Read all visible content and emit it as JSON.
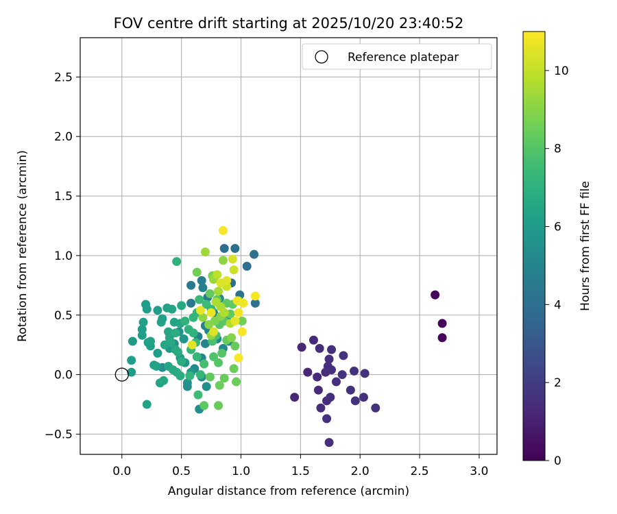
{
  "chart_data": {
    "type": "scatter",
    "title": "FOV centre drift starting at 2025/10/20 23:40:52",
    "xlabel": "Angular distance from reference (arcmin)",
    "ylabel": "Rotation from reference (arcmin)",
    "xlim": [
      -0.35,
      3.15
    ],
    "ylim": [
      -0.67,
      2.83
    ],
    "x_ticks": [
      0.0,
      0.5,
      1.0,
      1.5,
      2.0,
      2.5,
      3.0
    ],
    "x_tick_labels": [
      "0.0",
      "0.5",
      "1.0",
      "1.5",
      "2.0",
      "2.5",
      "3.0"
    ],
    "y_ticks": [
      -0.5,
      0.0,
      0.5,
      1.0,
      1.5,
      2.0,
      2.5
    ],
    "y_tick_labels": [
      "−0.5",
      "0.0",
      "0.5",
      "1.0",
      "1.5",
      "2.0",
      "2.5"
    ],
    "grid": true,
    "legend": {
      "placement": "upper right",
      "entries": [
        {
          "label": "Reference platepar",
          "marker": "open circle"
        }
      ]
    },
    "reference_point": {
      "x": 0.0,
      "y": 0.0
    },
    "colorbar": {
      "label": "Hours from first FF file",
      "colormap": "viridis",
      "range": [
        0,
        11
      ],
      "ticks": [
        0,
        2,
        4,
        6,
        8,
        10
      ],
      "tick_labels": [
        "0",
        "2",
        "4",
        "6",
        "8",
        "10"
      ]
    },
    "colors": {
      "viridis_stops": [
        "#440154",
        "#482878",
        "#3e4989",
        "#31688e",
        "#26828e",
        "#1f9e89",
        "#35b779",
        "#6ece58",
        "#b5de2b",
        "#fde725"
      ]
    },
    "points": [
      {
        "x": 2.63,
        "y": 0.67,
        "c": 0.2
      },
      {
        "x": 2.69,
        "y": 0.43,
        "c": 0.2
      },
      {
        "x": 2.69,
        "y": 0.31,
        "c": 0.2
      },
      {
        "x": 1.45,
        "y": -0.19,
        "c": 1.2
      },
      {
        "x": 1.51,
        "y": 0.23,
        "c": 1.2
      },
      {
        "x": 1.56,
        "y": 0.02,
        "c": 1.2
      },
      {
        "x": 1.61,
        "y": 0.29,
        "c": 1.3
      },
      {
        "x": 1.64,
        "y": -0.02,
        "c": 1.3
      },
      {
        "x": 1.65,
        "y": -0.13,
        "c": 1.3
      },
      {
        "x": 1.66,
        "y": 0.22,
        "c": 1.4
      },
      {
        "x": 1.67,
        "y": -0.28,
        "c": 1.4
      },
      {
        "x": 1.71,
        "y": 0.02,
        "c": 1.4
      },
      {
        "x": 1.72,
        "y": -0.22,
        "c": 1.4
      },
      {
        "x": 1.72,
        "y": -0.37,
        "c": 1.5
      },
      {
        "x": 1.73,
        "y": 0.07,
        "c": 1.5
      },
      {
        "x": 1.74,
        "y": 0.13,
        "c": 1.5
      },
      {
        "x": 1.74,
        "y": -0.57,
        "c": 1.5
      },
      {
        "x": 1.75,
        "y": -0.19,
        "c": 1.5
      },
      {
        "x": 1.76,
        "y": 0.21,
        "c": 1.5
      },
      {
        "x": 1.76,
        "y": 0.04,
        "c": 1.5
      },
      {
        "x": 1.8,
        "y": -0.06,
        "c": 1.5
      },
      {
        "x": 1.85,
        "y": 0.0,
        "c": 1.6
      },
      {
        "x": 1.86,
        "y": 0.16,
        "c": 1.6
      },
      {
        "x": 1.92,
        "y": -0.13,
        "c": 1.6
      },
      {
        "x": 1.95,
        "y": 0.03,
        "c": 1.6
      },
      {
        "x": 1.96,
        "y": -0.22,
        "c": 1.6
      },
      {
        "x": 2.03,
        "y": -0.19,
        "c": 1.6
      },
      {
        "x": 2.04,
        "y": 0.01,
        "c": 1.6
      },
      {
        "x": 2.13,
        "y": -0.28,
        "c": 1.6
      },
      {
        "x": 0.86,
        "y": 1.06,
        "c": 4.0
      },
      {
        "x": 0.95,
        "y": 1.06,
        "c": 4.0
      },
      {
        "x": 1.11,
        "y": 1.01,
        "c": 4.1
      },
      {
        "x": 1.05,
        "y": 0.91,
        "c": 4.0
      },
      {
        "x": 0.92,
        "y": 0.77,
        "c": 4.0
      },
      {
        "x": 0.99,
        "y": 0.67,
        "c": 4.2
      },
      {
        "x": 1.12,
        "y": 0.6,
        "c": 4.2
      },
      {
        "x": 0.58,
        "y": 0.75,
        "c": 4.5
      },
      {
        "x": 0.67,
        "y": 0.79,
        "c": 4.7
      },
      {
        "x": 0.68,
        "y": 0.73,
        "c": 4.8
      },
      {
        "x": 0.72,
        "y": 0.65,
        "c": 4.6
      },
      {
        "x": 0.58,
        "y": 0.6,
        "c": 4.6
      },
      {
        "x": 0.82,
        "y": 0.64,
        "c": 5.0
      },
      {
        "x": 0.77,
        "y": 0.52,
        "c": 5.0
      },
      {
        "x": 0.88,
        "y": 0.48,
        "c": 4.8
      },
      {
        "x": 0.7,
        "y": 0.41,
        "c": 4.9
      },
      {
        "x": 0.73,
        "y": 0.37,
        "c": 5.0
      },
      {
        "x": 0.64,
        "y": 0.32,
        "c": 4.9
      },
      {
        "x": 0.7,
        "y": 0.26,
        "c": 5.0
      },
      {
        "x": 0.8,
        "y": 0.3,
        "c": 5.1
      },
      {
        "x": 0.9,
        "y": 0.28,
        "c": 5.0
      },
      {
        "x": 0.85,
        "y": 0.22,
        "c": 5.2
      },
      {
        "x": 0.67,
        "y": 0.14,
        "c": 5.2
      },
      {
        "x": 0.61,
        "y": 0.05,
        "c": 5.3
      },
      {
        "x": 0.67,
        "y": -0.02,
        "c": 5.3
      },
      {
        "x": 0.71,
        "y": -0.1,
        "c": 5.4
      },
      {
        "x": 0.65,
        "y": -0.29,
        "c": 5.4
      },
      {
        "x": 0.55,
        "y": -0.1,
        "c": 5.5
      },
      {
        "x": 0.55,
        "y": -0.07,
        "c": 5.5
      },
      {
        "x": 0.34,
        "y": 0.06,
        "c": 5.4
      },
      {
        "x": 0.48,
        "y": 0.36,
        "c": 5.6
      },
      {
        "x": 0.52,
        "y": 0.3,
        "c": 5.7
      },
      {
        "x": 0.44,
        "y": 0.26,
        "c": 5.5
      },
      {
        "x": 0.4,
        "y": 0.22,
        "c": 5.8
      },
      {
        "x": 0.49,
        "y": 0.14,
        "c": 5.9
      },
      {
        "x": 0.53,
        "y": 0.1,
        "c": 5.8
      },
      {
        "x": 0.58,
        "y": 0.02,
        "c": 5.8
      },
      {
        "x": 0.2,
        "y": 0.59,
        "c": 6.1
      },
      {
        "x": 0.21,
        "y": 0.55,
        "c": 6.1
      },
      {
        "x": 0.3,
        "y": 0.54,
        "c": 6.1
      },
      {
        "x": 0.38,
        "y": 0.56,
        "c": 6.3
      },
      {
        "x": 0.42,
        "y": 0.55,
        "c": 6.4
      },
      {
        "x": 0.5,
        "y": 0.58,
        "c": 6.6
      },
      {
        "x": 0.46,
        "y": 0.95,
        "c": 7.0
      },
      {
        "x": 0.18,
        "y": 0.44,
        "c": 6.2
      },
      {
        "x": 0.34,
        "y": 0.47,
        "c": 6.2
      },
      {
        "x": 0.33,
        "y": 0.44,
        "c": 6.3
      },
      {
        "x": 0.44,
        "y": 0.44,
        "c": 6.4
      },
      {
        "x": 0.49,
        "y": 0.43,
        "c": 6.5
      },
      {
        "x": 0.17,
        "y": 0.38,
        "c": 6.1
      },
      {
        "x": 0.17,
        "y": 0.33,
        "c": 6.1
      },
      {
        "x": 0.09,
        "y": 0.28,
        "c": 6.0
      },
      {
        "x": 0.22,
        "y": 0.27,
        "c": 6.1
      },
      {
        "x": 0.24,
        "y": 0.28,
        "c": 6.3
      },
      {
        "x": 0.24,
        "y": 0.24,
        "c": 6.2
      },
      {
        "x": 0.39,
        "y": 0.36,
        "c": 6.5
      },
      {
        "x": 0.4,
        "y": 0.31,
        "c": 6.5
      },
      {
        "x": 0.41,
        "y": 0.27,
        "c": 6.6
      },
      {
        "x": 0.36,
        "y": 0.25,
        "c": 6.5
      },
      {
        "x": 0.3,
        "y": 0.18,
        "c": 6.1
      },
      {
        "x": 0.45,
        "y": 0.21,
        "c": 6.6
      },
      {
        "x": 0.47,
        "y": 0.19,
        "c": 6.7
      },
      {
        "x": 0.5,
        "y": 0.11,
        "c": 6.8
      },
      {
        "x": 0.08,
        "y": 0.12,
        "c": 6.1
      },
      {
        "x": 0.08,
        "y": 0.02,
        "c": 6.0
      },
      {
        "x": 0.27,
        "y": 0.08,
        "c": 6.2
      },
      {
        "x": 0.29,
        "y": 0.07,
        "c": 6.3
      },
      {
        "x": 0.39,
        "y": 0.07,
        "c": 6.5
      },
      {
        "x": 0.43,
        "y": 0.04,
        "c": 6.6
      },
      {
        "x": 0.46,
        "y": 0.02,
        "c": 6.7
      },
      {
        "x": 0.49,
        "y": -0.01,
        "c": 6.7
      },
      {
        "x": 0.32,
        "y": -0.07,
        "c": 6.4
      },
      {
        "x": 0.35,
        "y": -0.05,
        "c": 6.5
      },
      {
        "x": 0.21,
        "y": -0.25,
        "c": 6.4
      },
      {
        "x": 0.45,
        "y": 0.35,
        "c": 6.8
      },
      {
        "x": 0.56,
        "y": 0.38,
        "c": 7.0
      },
      {
        "x": 0.6,
        "y": 0.35,
        "c": 7.1
      },
      {
        "x": 0.53,
        "y": 0.45,
        "c": 7.1
      },
      {
        "x": 0.6,
        "y": 0.48,
        "c": 7.2
      },
      {
        "x": 0.63,
        "y": 0.52,
        "c": 7.2
      },
      {
        "x": 0.65,
        "y": 0.63,
        "c": 7.4
      },
      {
        "x": 0.71,
        "y": 0.59,
        "c": 7.5
      },
      {
        "x": 0.75,
        "y": 0.55,
        "c": 7.4
      },
      {
        "x": 0.62,
        "y": 0.27,
        "c": 7.3
      },
      {
        "x": 0.58,
        "y": 0.21,
        "c": 7.3
      },
      {
        "x": 0.63,
        "y": 0.15,
        "c": 7.3
      },
      {
        "x": 0.57,
        "y": -0.01,
        "c": 7.2
      },
      {
        "x": 0.66,
        "y": 0.0,
        "c": 7.3
      },
      {
        "x": 0.64,
        "y": -0.17,
        "c": 7.5
      },
      {
        "x": 0.69,
        "y": 0.09,
        "c": 7.7
      },
      {
        "x": 0.76,
        "y": 0.28,
        "c": 7.8
      },
      {
        "x": 0.79,
        "y": 0.33,
        "c": 7.8
      },
      {
        "x": 0.77,
        "y": 0.15,
        "c": 7.9
      },
      {
        "x": 0.81,
        "y": 0.1,
        "c": 8.0
      },
      {
        "x": 0.84,
        "y": 0.18,
        "c": 8.0
      },
      {
        "x": 0.82,
        "y": 0.42,
        "c": 8.0
      },
      {
        "x": 0.86,
        "y": 0.45,
        "c": 8.1
      },
      {
        "x": 0.88,
        "y": 0.6,
        "c": 8.2
      },
      {
        "x": 0.93,
        "y": 0.59,
        "c": 8.3
      },
      {
        "x": 0.8,
        "y": 0.63,
        "c": 8.1
      },
      {
        "x": 0.74,
        "y": 0.68,
        "c": 8.3
      },
      {
        "x": 0.91,
        "y": 0.51,
        "c": 8.3
      },
      {
        "x": 0.95,
        "y": 0.24,
        "c": 8.4
      },
      {
        "x": 0.88,
        "y": 0.29,
        "c": 8.4
      },
      {
        "x": 0.94,
        "y": 0.05,
        "c": 8.5
      },
      {
        "x": 0.96,
        "y": -0.06,
        "c": 8.5
      },
      {
        "x": 0.86,
        "y": -0.03,
        "c": 8.4
      },
      {
        "x": 0.74,
        "y": -0.02,
        "c": 8.3
      },
      {
        "x": 0.82,
        "y": -0.09,
        "c": 8.5
      },
      {
        "x": 0.69,
        "y": -0.26,
        "c": 8.2
      },
      {
        "x": 0.81,
        "y": -0.26,
        "c": 8.4
      },
      {
        "x": 1.01,
        "y": 0.45,
        "c": 8.6
      },
      {
        "x": 0.98,
        "y": 0.62,
        "c": 8.7
      },
      {
        "x": 0.76,
        "y": 0.83,
        "c": 8.8
      },
      {
        "x": 0.63,
        "y": 0.86,
        "c": 8.6
      },
      {
        "x": 0.78,
        "y": 0.45,
        "c": 8.8
      },
      {
        "x": 0.92,
        "y": 0.31,
        "c": 8.9
      },
      {
        "x": 0.73,
        "y": 0.42,
        "c": 9.0
      },
      {
        "x": 0.68,
        "y": 0.48,
        "c": 9.1
      },
      {
        "x": 0.83,
        "y": 0.49,
        "c": 9.0
      },
      {
        "x": 0.75,
        "y": 0.33,
        "c": 9.2
      },
      {
        "x": 0.85,
        "y": 0.96,
        "c": 9.1
      },
      {
        "x": 0.7,
        "y": 1.03,
        "c": 9.4
      },
      {
        "x": 0.77,
        "y": 0.8,
        "c": 9.3
      },
      {
        "x": 0.81,
        "y": 0.7,
        "c": 9.5
      },
      {
        "x": 0.79,
        "y": 0.61,
        "c": 9.6
      },
      {
        "x": 0.83,
        "y": 0.57,
        "c": 9.6
      },
      {
        "x": 0.86,
        "y": 0.52,
        "c": 9.7
      },
      {
        "x": 0.91,
        "y": 0.43,
        "c": 9.7
      },
      {
        "x": 0.8,
        "y": 0.84,
        "c": 9.9
      },
      {
        "x": 0.93,
        "y": 0.97,
        "c": 10.3
      },
      {
        "x": 0.94,
        "y": 0.88,
        "c": 10.2
      },
      {
        "x": 0.88,
        "y": 0.74,
        "c": 10.2
      },
      {
        "x": 0.88,
        "y": 0.79,
        "c": 10.5
      },
      {
        "x": 0.83,
        "y": 0.77,
        "c": 10.4
      },
      {
        "x": 0.97,
        "y": 0.62,
        "c": 10.7
      },
      {
        "x": 1.02,
        "y": 0.6,
        "c": 10.8
      },
      {
        "x": 0.98,
        "y": 0.52,
        "c": 10.8
      },
      {
        "x": 0.95,
        "y": 0.45,
        "c": 10.6
      },
      {
        "x": 1.01,
        "y": 0.36,
        "c": 10.9
      },
      {
        "x": 0.98,
        "y": 0.14,
        "c": 10.9
      },
      {
        "x": 1.12,
        "y": 0.66,
        "c": 10.9
      },
      {
        "x": 0.85,
        "y": 1.21,
        "c": 10.9
      },
      {
        "x": 0.75,
        "y": 0.52,
        "c": 10.7
      },
      {
        "x": 0.66,
        "y": 0.54,
        "c": 10.6
      },
      {
        "x": 0.59,
        "y": 0.25,
        "c": 10.5
      },
      {
        "x": 0.77,
        "y": 0.36,
        "c": 10.4
      }
    ]
  }
}
